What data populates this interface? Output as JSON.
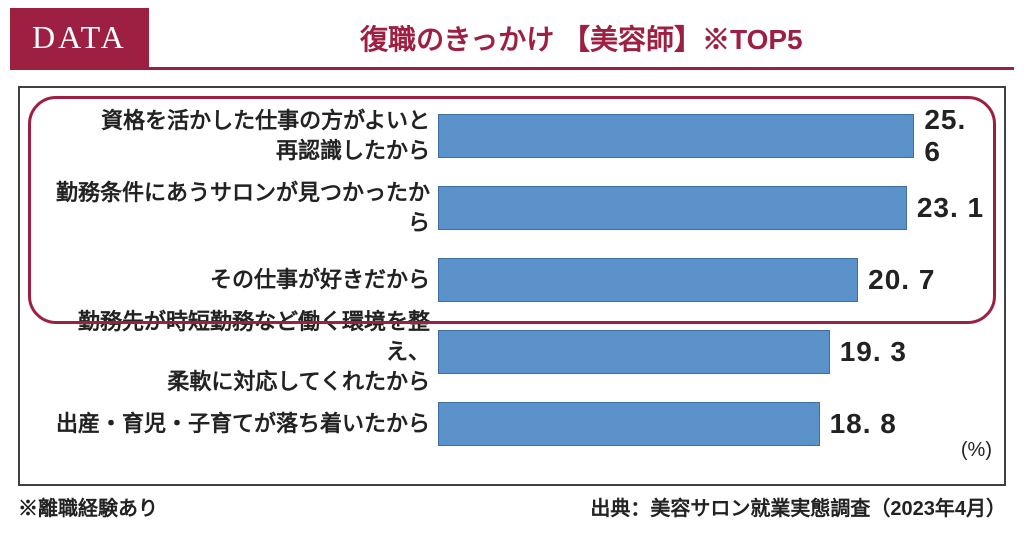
{
  "header": {
    "badge": "DATA",
    "title": "復職のきっかけ 【美容師】※TOP5"
  },
  "chart": {
    "type": "bar-horizontal",
    "bar_color": "#5a92c9",
    "bar_border_color": "#3d6fa3",
    "frame_border_color": "#404040",
    "highlight_border_color": "#9d2043",
    "background_color": "#ffffff",
    "value_fontsize": 28,
    "label_fontsize": 22,
    "max_value": 27,
    "unit_label": "(%)",
    "highlight_rows": [
      0,
      1,
      2
    ],
    "rows": [
      {
        "label": "資格を活かした仕事の方がよいと\n再認識したから",
        "value": 25.6,
        "display": "25. 6"
      },
      {
        "label": "勤務条件にあうサロンが見つかったから",
        "value": 23.1,
        "display": "23. 1"
      },
      {
        "label": "その仕事が好きだから",
        "value": 20.7,
        "display": "20. 7"
      },
      {
        "label": "勤務先が時短勤務など働く環境を整え、\n柔軟に対応してくれたから",
        "value": 19.3,
        "display": "19. 3"
      },
      {
        "label": "出産・育児・子育てが落ち着いたから",
        "value": 18.8,
        "display": "18. 8"
      }
    ]
  },
  "footer": {
    "note": "※離職経験あり",
    "source": "出典：美容サロン就業実態調査（2023年4月）"
  }
}
